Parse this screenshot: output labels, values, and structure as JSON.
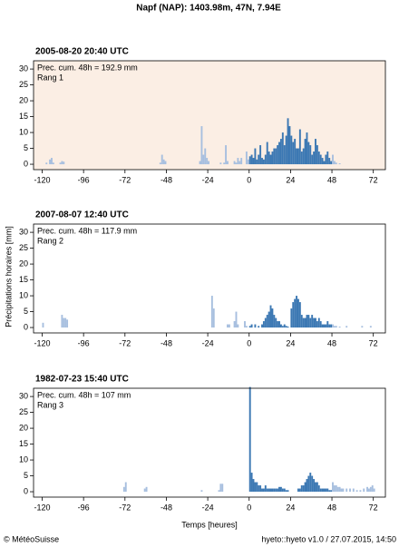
{
  "title": "Napf (NAP): 1403.98m, 47N, 7.94E",
  "ylabel": "Précipitations horaires [mm]",
  "xlabel": "Temps [heures]",
  "credit": "© MétéoSuisse",
  "version": "hyeto::hyeto v1.0 / 27.07.2015, 14:50",
  "chart_data": [
    {
      "type": "bar",
      "title": "2005-08-20 20:40 UTC",
      "annotations": [
        "Prec. cum. 48h = 192.9 mm",
        "Rang 1"
      ],
      "background": "#fbeee4",
      "x": [
        -118,
        -116,
        -115,
        -114,
        -110,
        -109,
        -108,
        -52,
        -51,
        -50,
        -49,
        -29,
        -28,
        -27,
        -26,
        -25,
        -24,
        -17,
        -15,
        -14,
        -13,
        -9,
        -8,
        -7,
        -6,
        -5,
        -2,
        -1,
        0,
        1,
        2,
        3,
        4,
        5,
        6,
        7,
        8,
        9,
        10,
        11,
        12,
        13,
        14,
        15,
        16,
        17,
        18,
        19,
        20,
        21,
        22,
        23,
        24,
        25,
        26,
        27,
        28,
        29,
        30,
        31,
        32,
        33,
        34,
        35,
        36,
        37,
        38,
        39,
        40,
        41,
        42,
        43,
        44,
        45,
        46,
        47,
        48,
        49,
        50,
        52
      ],
      "values": [
        0.5,
        1.5,
        2,
        0.5,
        0.5,
        1,
        0.8,
        0.5,
        3,
        1.5,
        1,
        1,
        12,
        3,
        5,
        2,
        1,
        0.5,
        0.5,
        6,
        1,
        1,
        0.5,
        2,
        1,
        2,
        4,
        1.5,
        2.5,
        3,
        2,
        5,
        1.5,
        3,
        6,
        2,
        1.5,
        3,
        7,
        4,
        3,
        4,
        5,
        5,
        6,
        7,
        8,
        10,
        6,
        9,
        14.5,
        12,
        9,
        7,
        8,
        5,
        5,
        11,
        4,
        5,
        8,
        10,
        7,
        6,
        3,
        4,
        8,
        6,
        4,
        3,
        2,
        1,
        3,
        4,
        2,
        1,
        3,
        1,
        0.5,
        0.3
      ],
      "colors": [
        "#a7bfdf",
        "#a7bfdf",
        "#a7bfdf",
        "#a7bfdf",
        "#a7bfdf",
        "#a7bfdf",
        "#a7bfdf",
        "#a7bfdf",
        "#a7bfdf",
        "#a7bfdf",
        "#a7bfdf",
        "#a7bfdf",
        "#a7bfdf",
        "#a7bfdf",
        "#a7bfdf",
        "#a7bfdf",
        "#a7bfdf",
        "#a7bfdf",
        "#a7bfdf",
        "#a7bfdf",
        "#a7bfdf",
        "#a7bfdf",
        "#a7bfdf",
        "#a7bfdf",
        "#a7bfdf",
        "#a7bfdf",
        "#a7bfdf",
        "#a7bfdf",
        "#3c78b3",
        "#3c78b3",
        "#3c78b3",
        "#3c78b3",
        "#3c78b3",
        "#3c78b3",
        "#3c78b3",
        "#3c78b3",
        "#3c78b3",
        "#3c78b3",
        "#3c78b3",
        "#3c78b3",
        "#3c78b3",
        "#3c78b3",
        "#3c78b3",
        "#3c78b3",
        "#3c78b3",
        "#3c78b3",
        "#3c78b3",
        "#3c78b3",
        "#3c78b3",
        "#3c78b3",
        "#3c78b3",
        "#3c78b3",
        "#3c78b3",
        "#3c78b3",
        "#3c78b3",
        "#3c78b3",
        "#3c78b3",
        "#3c78b3",
        "#3c78b3",
        "#3c78b3",
        "#3c78b3",
        "#3c78b3",
        "#3c78b3",
        "#3c78b3",
        "#3c78b3",
        "#3c78b3",
        "#3c78b3",
        "#3c78b3",
        "#3c78b3",
        "#3c78b3",
        "#3c78b3",
        "#3c78b3",
        "#3c78b3",
        "#3c78b3",
        "#3c78b3",
        "#3c78b3",
        "#a7bfdf",
        "#a7bfdf",
        "#a7bfdf",
        "#a7bfdf"
      ],
      "xlim": [
        -125,
        79
      ],
      "xticks": [
        -120,
        -96,
        -72,
        -48,
        -24,
        0,
        24,
        48,
        72
      ],
      "ylim": [
        -1.7,
        32.6
      ],
      "yticks": [
        0,
        5,
        10,
        15,
        20,
        25,
        30
      ]
    },
    {
      "type": "bar",
      "title": "2007-08-07 12:40 UTC",
      "annotations": [
        "Prec. cum. 48h = 117.9 mm",
        "Rang 2"
      ],
      "background": "#ffffff",
      "x": [
        -120,
        -109,
        -108,
        -107,
        -106,
        -22,
        -21,
        -13,
        -12,
        -9,
        -8,
        -7,
        -3,
        -2,
        0,
        1,
        3,
        5,
        7,
        8,
        9,
        10,
        11,
        12,
        13,
        14,
        15,
        16,
        17,
        18,
        19,
        20,
        21,
        22,
        24,
        25,
        26,
        27,
        28,
        29,
        30,
        31,
        32,
        33,
        34,
        35,
        36,
        37,
        38,
        39,
        40,
        41,
        42,
        43,
        44,
        45,
        46,
        47,
        48,
        49,
        50,
        52,
        56,
        65,
        70
      ],
      "values": [
        1.5,
        4,
        3,
        3,
        2.5,
        10,
        6,
        1,
        1,
        2,
        5,
        1,
        2,
        0.5,
        0.5,
        1,
        1,
        0.5,
        1,
        2,
        3,
        4,
        5,
        7,
        6,
        4,
        3,
        2,
        2,
        1,
        0.5,
        1,
        0.5,
        0.3,
        6,
        8,
        9,
        10,
        9,
        8,
        4,
        3,
        3,
        4,
        4,
        3,
        4,
        3,
        3,
        2,
        3,
        2,
        1,
        1,
        1,
        2,
        1,
        1,
        1,
        0.5,
        0.5,
        0.3,
        0.5,
        0.5,
        0.5
      ],
      "colors": [
        "#a7bfdf",
        "#a7bfdf",
        "#a7bfdf",
        "#a7bfdf",
        "#a7bfdf",
        "#a7bfdf",
        "#a7bfdf",
        "#a7bfdf",
        "#a7bfdf",
        "#a7bfdf",
        "#a7bfdf",
        "#a7bfdf",
        "#a7bfdf",
        "#a7bfdf",
        "#3c78b3",
        "#3c78b3",
        "#3c78b3",
        "#3c78b3",
        "#3c78b3",
        "#3c78b3",
        "#3c78b3",
        "#3c78b3",
        "#3c78b3",
        "#3c78b3",
        "#3c78b3",
        "#3c78b3",
        "#3c78b3",
        "#3c78b3",
        "#3c78b3",
        "#3c78b3",
        "#3c78b3",
        "#3c78b3",
        "#3c78b3",
        "#3c78b3",
        "#3c78b3",
        "#3c78b3",
        "#3c78b3",
        "#3c78b3",
        "#3c78b3",
        "#3c78b3",
        "#3c78b3",
        "#3c78b3",
        "#3c78b3",
        "#3c78b3",
        "#3c78b3",
        "#3c78b3",
        "#3c78b3",
        "#3c78b3",
        "#3c78b3",
        "#3c78b3",
        "#3c78b3",
        "#3c78b3",
        "#3c78b3",
        "#3c78b3",
        "#3c78b3",
        "#3c78b3",
        "#3c78b3",
        "#3c78b3",
        "#a7bfdf",
        "#a7bfdf",
        "#a7bfdf",
        "#a7bfdf",
        "#a7bfdf",
        "#a7bfdf",
        "#a7bfdf"
      ],
      "xlim": [
        -125,
        79
      ],
      "xticks": [
        -120,
        -96,
        -72,
        -48,
        -24,
        0,
        24,
        48,
        72
      ],
      "ylim": [
        -1.7,
        32.6
      ],
      "yticks": [
        0,
        5,
        10,
        15,
        20,
        25,
        30
      ]
    },
    {
      "type": "bar",
      "title": "1982-07-23 15:40 UTC",
      "annotations": [
        "Prec. cum. 48h = 107 mm",
        "Rang 3"
      ],
      "background": "#ffffff",
      "x": [
        -73,
        -72,
        -61,
        -60,
        -28,
        -18,
        -17,
        -16,
        0,
        1,
        2,
        3,
        4,
        5,
        6,
        7,
        8,
        9,
        10,
        11,
        12,
        13,
        14,
        15,
        16,
        17,
        18,
        19,
        20,
        21,
        22,
        28,
        29,
        30,
        31,
        32,
        33,
        34,
        35,
        36,
        37,
        38,
        39,
        40,
        41,
        42,
        43,
        44,
        45,
        46,
        47,
        48,
        49,
        50,
        51,
        52,
        53,
        54,
        56,
        58,
        60,
        62,
        64,
        66,
        68,
        69,
        70,
        71,
        72
      ],
      "values": [
        1.5,
        3,
        1,
        1.5,
        0.5,
        0.5,
        2.5,
        2.5,
        33,
        6,
        4,
        3,
        3,
        2,
        2,
        1,
        1,
        2,
        1,
        1,
        1,
        1,
        1,
        1,
        1,
        1.5,
        1.5,
        1,
        1,
        0.5,
        0.5,
        1,
        1,
        2,
        2,
        3,
        4,
        5,
        6,
        5,
        4,
        3,
        3,
        2,
        1,
        1,
        1,
        1,
        1,
        0.5,
        0.5,
        3,
        2,
        2,
        1.5,
        1.5,
        1,
        1,
        1,
        1,
        1,
        0.5,
        0.5,
        1,
        1.5,
        1,
        1.5,
        2,
        1
      ],
      "colors": [
        "#a7bfdf",
        "#a7bfdf",
        "#a7bfdf",
        "#a7bfdf",
        "#a7bfdf",
        "#a7bfdf",
        "#a7bfdf",
        "#a7bfdf",
        "#3c78b3",
        "#3c78b3",
        "#3c78b3",
        "#3c78b3",
        "#3c78b3",
        "#3c78b3",
        "#3c78b3",
        "#3c78b3",
        "#3c78b3",
        "#3c78b3",
        "#3c78b3",
        "#3c78b3",
        "#3c78b3",
        "#3c78b3",
        "#3c78b3",
        "#3c78b3",
        "#3c78b3",
        "#3c78b3",
        "#3c78b3",
        "#3c78b3",
        "#3c78b3",
        "#3c78b3",
        "#3c78b3",
        "#3c78b3",
        "#3c78b3",
        "#3c78b3",
        "#3c78b3",
        "#3c78b3",
        "#3c78b3",
        "#3c78b3",
        "#3c78b3",
        "#3c78b3",
        "#3c78b3",
        "#3c78b3",
        "#3c78b3",
        "#3c78b3",
        "#3c78b3",
        "#3c78b3",
        "#3c78b3",
        "#3c78b3",
        "#3c78b3",
        "#3c78b3",
        "#3c78b3",
        "#a7bfdf",
        "#a7bfdf",
        "#a7bfdf",
        "#a7bfdf",
        "#a7bfdf",
        "#a7bfdf",
        "#a7bfdf",
        "#a7bfdf",
        "#a7bfdf",
        "#a7bfdf",
        "#a7bfdf",
        "#a7bfdf",
        "#a7bfdf",
        "#a7bfdf",
        "#a7bfdf",
        "#a7bfdf",
        "#a7bfdf",
        "#a7bfdf"
      ],
      "xlim": [
        -125,
        79
      ],
      "xticks": [
        -120,
        -96,
        -72,
        -48,
        -24,
        0,
        24,
        48,
        72
      ],
      "ylim": [
        -1.7,
        32.6
      ],
      "yticks": [
        0,
        5,
        10,
        15,
        20,
        25,
        30
      ]
    }
  ]
}
